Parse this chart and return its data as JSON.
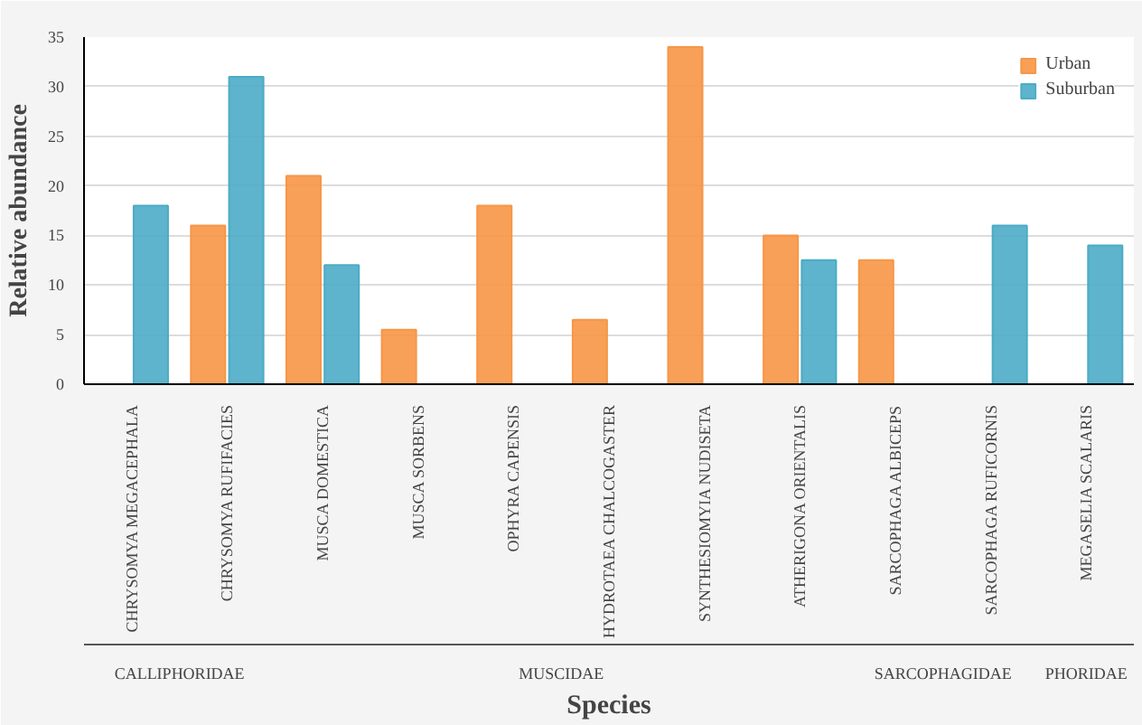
{
  "chart_data": {
    "type": "bar",
    "xlabel": "Species",
    "ylabel": "Relative abundance",
    "categories": [
      "CHRYSOMYA MEGACEPHALA",
      "CHRYSOMYA RUFIFACIES",
      "MUSCA DOMESTICA",
      "MUSCA SORBENS",
      "OPHYRA CAPENSIS",
      "HYDROTAEA CHALCOGASTER",
      "SYNTHESIOMYIA NUDISETA",
      "ATHERIGONA ORIENTALIS",
      "SARCOPHAGA ALBICEPS",
      "SARCOPHAGA RUFICORNIS",
      "MEGASELIA SCALARIS"
    ],
    "series": [
      {
        "name": "Urban",
        "color": "#f79646",
        "values": [
          0,
          16,
          21,
          5.5,
          18,
          6.5,
          34,
          15,
          12.5,
          0,
          0
        ]
      },
      {
        "name": "Suburban",
        "color": "#4bacc6",
        "values": [
          18,
          31,
          12,
          0,
          0,
          0,
          0,
          12.5,
          0,
          16,
          14
        ]
      }
    ],
    "ylim": [
      0,
      35
    ],
    "yticks": [
      0,
      5,
      10,
      15,
      20,
      25,
      30,
      35
    ],
    "grid": "y",
    "legend": "top right",
    "annotations": [
      "CALLIPHORIDAE",
      "MUSCIDAE",
      "SARCOPHAGIDAE",
      "PHORIDAE"
    ]
  }
}
